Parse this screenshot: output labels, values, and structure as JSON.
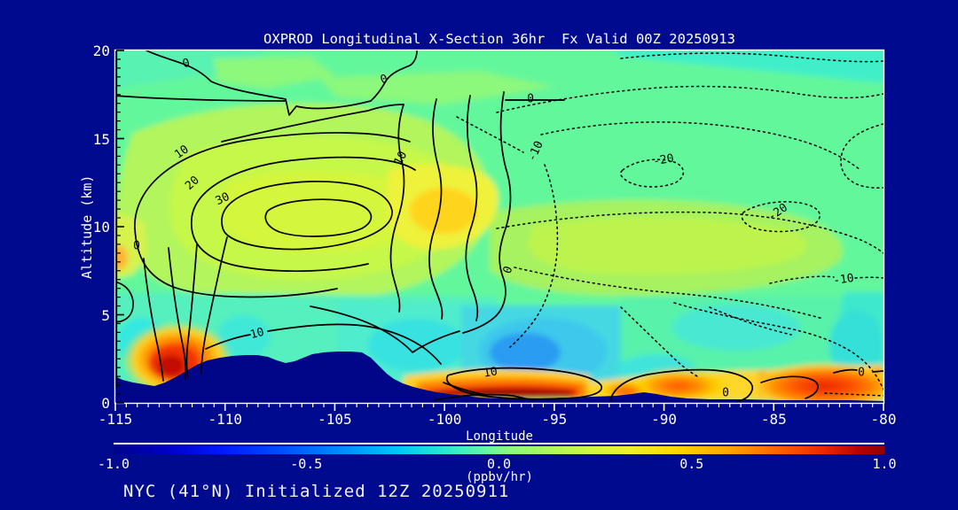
{
  "header": {
    "title": "OXPROD Longitudinal X-Section 36hr  Fx Valid 00Z 20250913"
  },
  "footer": {
    "text": "NYC (41°N) Initialized 12Z 20250911"
  },
  "axes": {
    "x": {
      "label": "Longitude",
      "min": -115,
      "max": -80,
      "major_ticks": [
        -115,
        -110,
        -105,
        -100,
        -95,
        -90,
        -85,
        -80
      ],
      "minor_step": 0.5
    },
    "y": {
      "label": "Altitude (km)",
      "min": 0,
      "max": 20,
      "major_ticks": [
        0,
        5,
        10,
        15,
        20
      ],
      "minor_step": 0.5
    }
  },
  "colorbar": {
    "label": "(ppbv/hr)",
    "tick_labels": [
      "-1.0",
      "-0.5",
      "0.0",
      "0.5",
      "1.0"
    ],
    "tick_values": [
      -1.0,
      -0.5,
      0.0,
      0.5,
      1.0
    ],
    "min": -1.0,
    "max": 1.0
  },
  "chart_data": {
    "type": "heatmap",
    "subtype": "filled-contour longitude-altitude cross-section with line-contour overlay",
    "title": "OXPROD Longitudinal X-Section 36hr  Fx Valid 00Z 20250913",
    "station_line": "NYC (41°N) Initialized 12Z 20250911",
    "xlabel": "Longitude",
    "ylabel": "Altitude (km)",
    "xlim": [
      -115,
      -80
    ],
    "ylim": [
      0,
      20
    ],
    "fill_units": "(ppbv/hr)",
    "fill_range": [
      -1.0,
      1.0
    ],
    "fill_palette": "blue-cyan-green-yellow-orange-red rainbow",
    "line_contours": {
      "solid_positive_levels": [
        0,
        10,
        20,
        30
      ],
      "dotted_negative_levels": [
        -10,
        -20
      ]
    },
    "contour_labels": [
      {
        "text": "0",
        "x": 210,
        "y": 72,
        "rot": -15,
        "lon": -111.8,
        "alt": 19.2
      },
      {
        "text": "0",
        "x": 433,
        "y": 90,
        "rot": -18,
        "lon": -102.7,
        "alt": 18.3
      },
      {
        "text": "0",
        "x": 598,
        "y": 112,
        "rot": 0,
        "lon": -96.1,
        "alt": 17.2
      },
      {
        "text": "10",
        "x": 205,
        "y": 172,
        "rot": -35,
        "lon": -112.0,
        "alt": 14.2
      },
      {
        "text": "10",
        "x": 452,
        "y": 179,
        "rot": -62,
        "lon": -102.0,
        "alt": 13.9
      },
      {
        "text": "20",
        "x": 217,
        "y": 207,
        "rot": -42,
        "lon": -111.5,
        "alt": 12.5
      },
      {
        "text": "30",
        "x": 251,
        "y": 225,
        "rot": -25,
        "lon": -110.1,
        "alt": 11.6
      },
      {
        "text": "-10",
        "x": 604,
        "y": 171,
        "rot": -65,
        "lon": -95.8,
        "alt": 14.3
      },
      {
        "text": "-20",
        "x": 748,
        "y": 181,
        "rot": -10,
        "lon": -90.0,
        "alt": 13.8
      },
      {
        "text": "-20",
        "x": 877,
        "y": 240,
        "rot": -35,
        "lon": -84.8,
        "alt": 10.8
      },
      {
        "text": "-10",
        "x": 951,
        "y": 316,
        "rot": -8,
        "lon": -81.8,
        "alt": 7.0
      },
      {
        "text": "0",
        "x": 573,
        "y": 305,
        "rot": -70,
        "lon": -97.1,
        "alt": 7.5
      },
      {
        "text": "0",
        "x": 154,
        "y": 278,
        "rot": 0,
        "lon": -114.0,
        "alt": 8.9
      },
      {
        "text": "10",
        "x": 290,
        "y": 377,
        "rot": -15,
        "lon": -108.5,
        "alt": 3.9
      },
      {
        "text": "10",
        "x": 553,
        "y": 421,
        "rot": -10,
        "lon": -97.9,
        "alt": 1.7
      },
      {
        "text": "0",
        "x": 818,
        "y": 444,
        "rot": 0,
        "lon": -87.2,
        "alt": 0.6
      },
      {
        "text": "0",
        "x": 971,
        "y": 421,
        "rot": 0,
        "lon": -81.0,
        "alt": 1.7
      }
    ],
    "features": [
      {
        "name": "positive production anomaly",
        "lon": [
          -113,
          -96
        ],
        "alt": [
          6,
          14
        ],
        "max_contour": 30,
        "fill": "yellow-green, ~+0.2 to +0.35 ppbv/hr, golden core near lon -101 alt 10-12"
      },
      {
        "name": "negative region (dotted contours)",
        "lon": [
          -97,
          -80
        ],
        "alt": [
          6,
          18
        ],
        "min_contour": -20,
        "loops_at": [
          [
            -90,
            13.8
          ],
          [
            -84.8,
            10.8
          ]
        ]
      },
      {
        "name": "surface hotspot west",
        "lon": [
          -113.5,
          -110.5
        ],
        "alt": [
          0.8,
          3.2
        ],
        "fill": "red/dark-red, ~+0.8 to +1.0 ppbv/hr"
      },
      {
        "name": "surface dark-red streak",
        "lon": [
          -99.5,
          -96
        ],
        "alt": [
          0.2,
          1.2
        ],
        "fill": "dark red, ~+1.0 ppbv/hr"
      },
      {
        "name": "surface warm band east",
        "lon": [
          -91,
          -80
        ],
        "alt": [
          0.2,
          2.2
        ],
        "fill": "orange-red, ~+0.6 to +1.0 ppbv/hr, strongest lon -87..-80"
      },
      {
        "name": "low-level negative pool",
        "lon": [
          -98.5,
          -95.5
        ],
        "alt": [
          1.5,
          4.5
        ],
        "fill": "blue/cyan, ~-0.4 ppbv/hr"
      },
      {
        "name": "cool band aloft top corners",
        "lon": [
          -115,
          -80
        ],
        "alt": [
          18,
          20
        ],
        "fill": "turquoise, slightly negative"
      }
    ],
    "terrain_profile_lon_km": [
      [
        -115,
        1.6
      ],
      [
        -114.5,
        1.3
      ],
      [
        -114,
        1.15
      ],
      [
        -113.5,
        1.05
      ],
      [
        -113,
        1.0
      ],
      [
        -112.5,
        1.3
      ],
      [
        -112,
        1.7
      ],
      [
        -111.5,
        2.2
      ],
      [
        -111,
        2.45
      ],
      [
        -110.5,
        2.6
      ],
      [
        -110,
        2.7
      ],
      [
        -109.5,
        2.72
      ],
      [
        -109,
        2.6
      ],
      [
        -108.7,
        2.4
      ],
      [
        -108.3,
        2.3
      ],
      [
        -108,
        2.55
      ],
      [
        -107.5,
        2.85
      ],
      [
        -107,
        2.9
      ],
      [
        -106.5,
        2.92
      ],
      [
        -106,
        2.85
      ],
      [
        -105.6,
        2.6
      ],
      [
        -105.2,
        2.1
      ],
      [
        -104.8,
        1.6
      ],
      [
        -104.4,
        1.2
      ],
      [
        -104,
        0.9
      ],
      [
        -103.4,
        0.6
      ],
      [
        -102.8,
        0.45
      ],
      [
        -102,
        0.3
      ],
      [
        -101,
        0.27
      ],
      [
        -100,
        0.25
      ],
      [
        -98,
        0.3
      ],
      [
        -96,
        0.32
      ],
      [
        -94.8,
        0.45
      ],
      [
        -94.2,
        0.6
      ],
      [
        -93.6,
        0.45
      ],
      [
        -92.8,
        0.3
      ],
      [
        -91,
        0.25
      ],
      [
        -88,
        0.22
      ],
      [
        -85,
        0.2
      ],
      [
        -82,
        0.18
      ],
      [
        -80,
        0.15
      ]
    ],
    "grid": false,
    "legend_position": "horizontal colorbar below plot"
  }
}
